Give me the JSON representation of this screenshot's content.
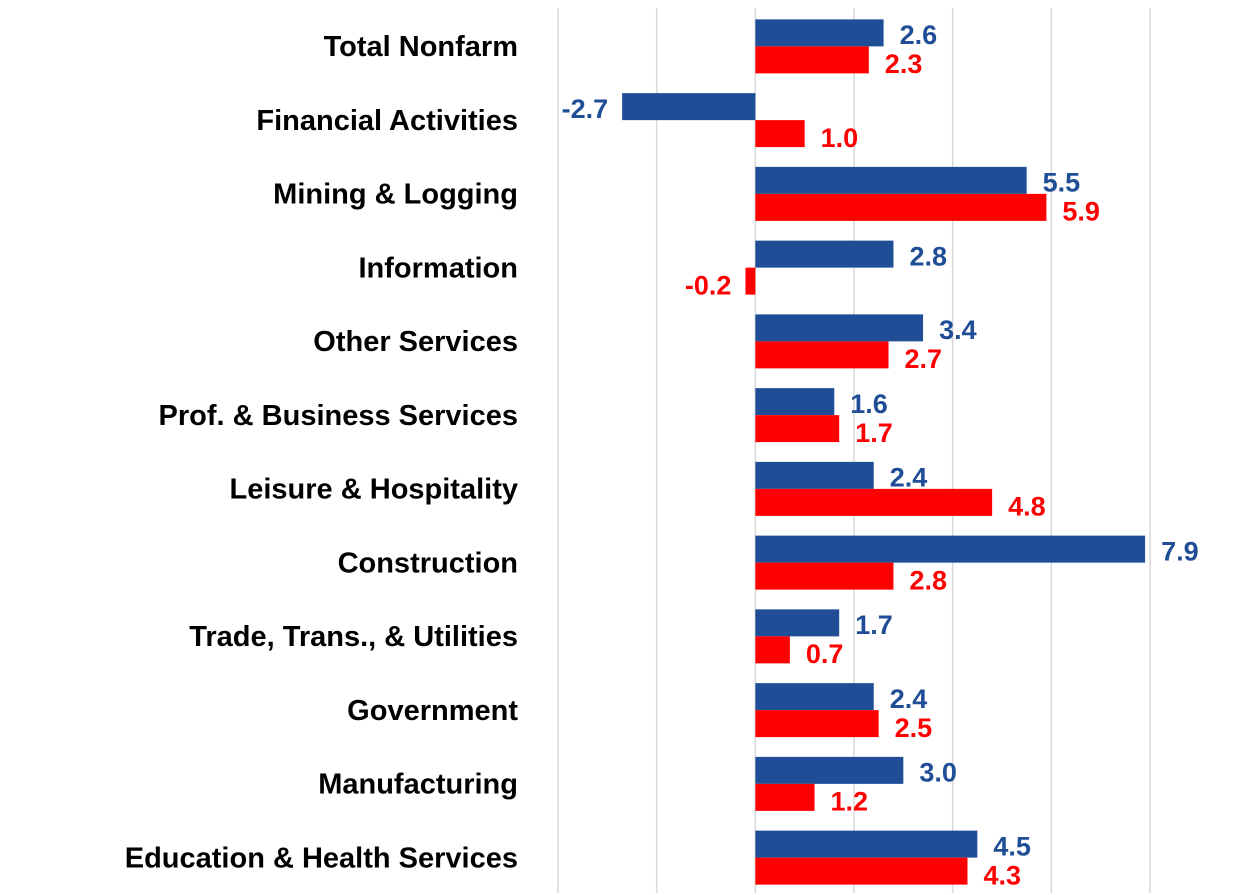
{
  "chart_data": {
    "type": "hbar",
    "categories": [
      "Total Nonfarm",
      "Financial Activities",
      "Mining & Logging",
      "Information",
      "Other Services",
      "Prof. & Business Services",
      "Leisure & Hospitality",
      "Construction",
      "Trade, Trans., & Utilities",
      "Government",
      "Manufacturing",
      "Education & Health Services"
    ],
    "series": [
      {
        "color": "#1f4e96",
        "values": [
          2.6,
          -2.7,
          5.5,
          2.8,
          3.4,
          1.6,
          2.4,
          7.9,
          1.7,
          2.4,
          3.0,
          4.5
        ],
        "value_labels": [
          "2.6",
          "-2.7",
          "5.5",
          "2.8",
          "3.4",
          "1.6",
          "2.4",
          "7.9",
          "1.7",
          "2.4",
          "3.0",
          "4.5"
        ]
      },
      {
        "color": "#ff0000",
        "values": [
          2.3,
          1.0,
          5.9,
          -0.2,
          2.7,
          1.7,
          4.8,
          2.8,
          0.7,
          2.5,
          1.2,
          4.3
        ],
        "value_labels": [
          "2.3",
          "1.0",
          "5.9",
          "-0.2",
          "2.7",
          "1.7",
          "4.8",
          "2.8",
          "0.7",
          "2.5",
          "1.2",
          "4.3"
        ]
      }
    ],
    "xlim": [
      -4,
      8
    ],
    "xticks": [
      -4,
      -2,
      0,
      2,
      4,
      6,
      8
    ],
    "grid": true
  }
}
